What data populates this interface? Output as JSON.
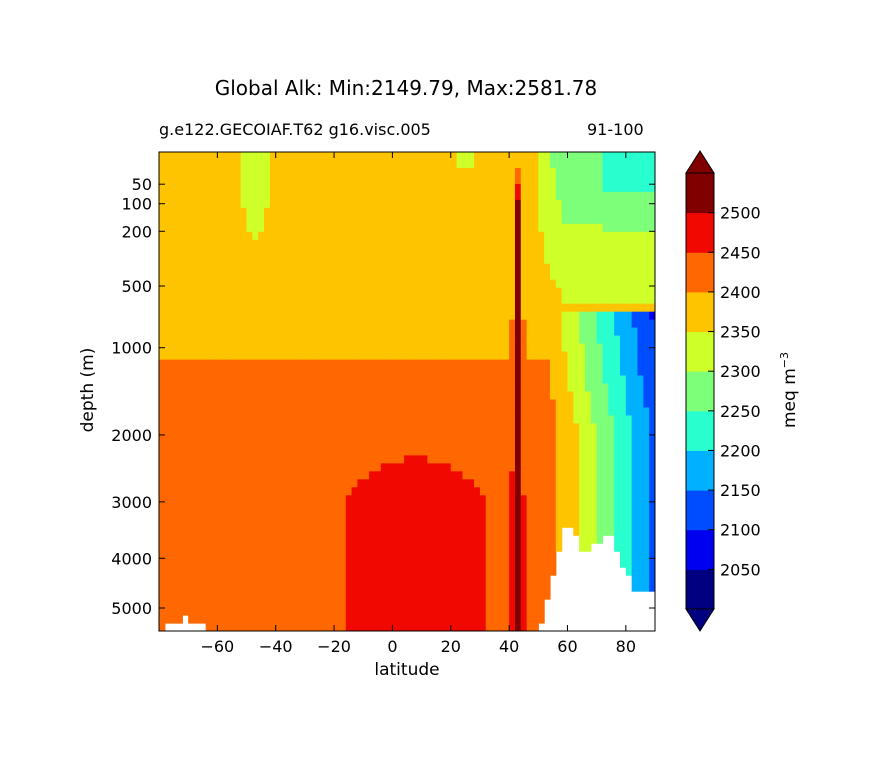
{
  "chart_data": {
    "type": "heatmap",
    "title": "Global Alk: Min:2149.79, Max:2581.78",
    "subtitle_left": "g.e122.GECOIAF.T62 g16.visc.005",
    "subtitle_right": "91-100",
    "xlabel": "latitude",
    "ylabel": "depth (m)",
    "colorbar_label": "meq m",
    "colorbar_label_exp": "−3",
    "xlim": [
      -80,
      90
    ],
    "x_ticks": [
      -60,
      -40,
      -20,
      0,
      20,
      40,
      60,
      80
    ],
    "x_tick_labels": [
      "−60",
      "−40",
      "−20",
      "0",
      "20",
      "40",
      "60",
      "80"
    ],
    "y_scale": "sqrt",
    "ylim": [
      5500,
      5
    ],
    "y_ticks": [
      50,
      100,
      200,
      500,
      1000,
      2000,
      3000,
      4000,
      5000
    ],
    "y_tick_labels": [
      "50",
      "100",
      "200",
      "500",
      "1000",
      "2000",
      "3000",
      "4000",
      "5000"
    ],
    "levels": [
      2000,
      2050,
      2100,
      2150,
      2200,
      2250,
      2300,
      2350,
      2400,
      2450,
      2500,
      2550
    ],
    "colorbar_tick_labels": [
      "2050",
      "2100",
      "2150",
      "2200",
      "2250",
      "2300",
      "2350",
      "2400",
      "2450",
      "2500"
    ],
    "colors": [
      "#000080",
      "#0000f1",
      "#004dff",
      "#00b1ff",
      "#29ffce",
      "#7dff7a",
      "#ceff29",
      "#ffc400",
      "#ff6800",
      "#f10800",
      "#800000"
    ],
    "extend": "both",
    "min": 2149.79,
    "max": 2581.78
  }
}
